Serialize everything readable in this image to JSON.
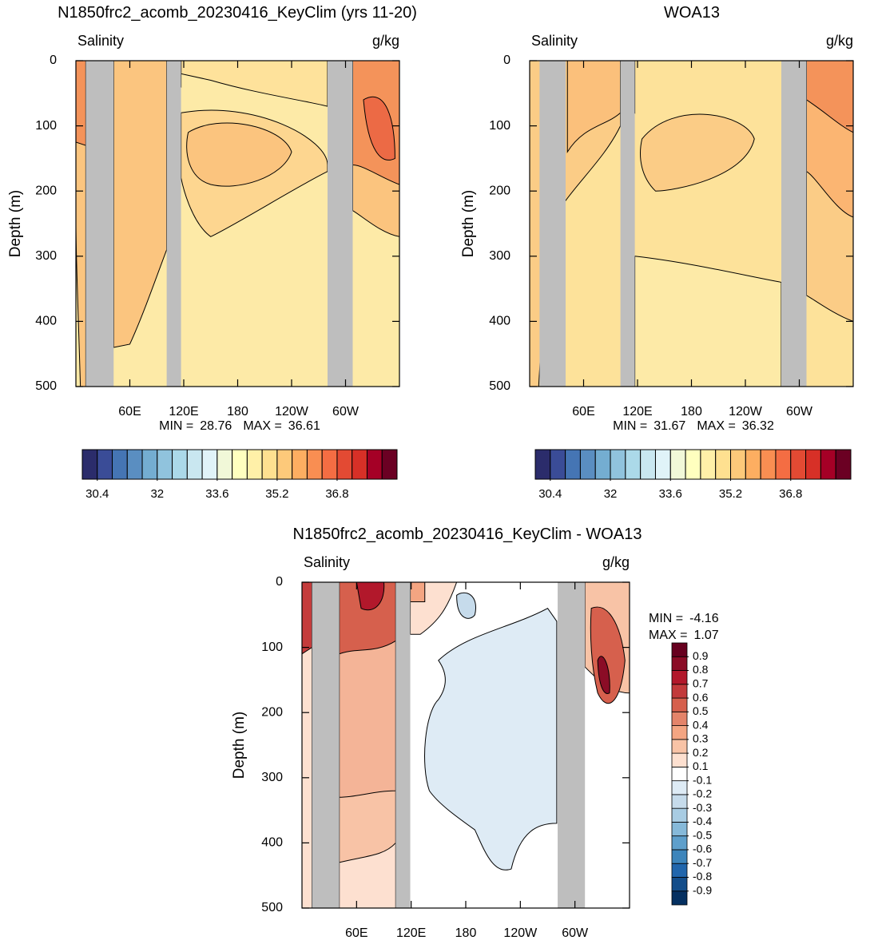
{
  "chart_data": [
    {
      "type": "contour",
      "title": "N1850frc2_acomb_20230416_KeyClim (yrs 11-20)",
      "left_label": "Salinity",
      "right_label": "g/kg",
      "ylabel": "Depth (m)",
      "xlim": [
        0,
        360
      ],
      "xticks": [
        {
          "value": 60,
          "label": "60E"
        },
        {
          "value": 120,
          "label": "120E"
        },
        180,
        {
          "value": 240,
          "label": "120W"
        },
        {
          "value": 300,
          "label": "60W"
        }
      ],
      "ylim": [
        0,
        500
      ],
      "yticks": [
        0,
        100,
        200,
        300,
        400,
        500
      ],
      "y_inverted": true,
      "min_label": "MIN =",
      "min": 28.76,
      "max_label": "MAX =",
      "max": 36.61,
      "colorbar": {
        "orientation": "horizontal",
        "lim": [
          30.0,
          38.4
        ],
        "ticks": [
          30.4,
          32,
          33.6,
          35.2,
          36.8
        ],
        "colors": [
          "#2b2c6b",
          "#3a4c97",
          "#4575b4",
          "#5a8ec1",
          "#74add1",
          "#90c3dd",
          "#abd9e9",
          "#c9e7f0",
          "#e0f3f8",
          "#f1f8d8",
          "#ffffbf",
          "#fff0a8",
          "#fee090",
          "#fdc97a",
          "#fdae61",
          "#f98e52",
          "#f46d43",
          "#e34a33",
          "#d73027",
          "#a50026",
          "#6b0023"
        ]
      }
    },
    {
      "type": "contour",
      "title": "WOA13",
      "left_label": "Salinity",
      "right_label": "g/kg",
      "ylabel": "Depth (m)",
      "xlim": [
        0,
        360
      ],
      "xticks": [
        {
          "value": 60,
          "label": "60E"
        },
        {
          "value": 120,
          "label": "120E"
        },
        180,
        {
          "value": 240,
          "label": "120W"
        },
        {
          "value": 300,
          "label": "60W"
        }
      ],
      "ylim": [
        0,
        500
      ],
      "yticks": [
        0,
        100,
        200,
        300,
        400,
        500
      ],
      "y_inverted": true,
      "min_label": "MIN =",
      "min": 31.67,
      "max_label": "MAX =",
      "max": 36.32,
      "colorbar": {
        "orientation": "horizontal",
        "lim": [
          30.0,
          38.4
        ],
        "ticks": [
          30.4,
          32,
          33.6,
          35.2,
          36.8
        ],
        "colors": [
          "#2b2c6b",
          "#3a4c97",
          "#4575b4",
          "#5a8ec1",
          "#74add1",
          "#90c3dd",
          "#abd9e9",
          "#c9e7f0",
          "#e0f3f8",
          "#f1f8d8",
          "#ffffbf",
          "#fff0a8",
          "#fee090",
          "#fdc97a",
          "#fdae61",
          "#f98e52",
          "#f46d43",
          "#e34a33",
          "#d73027",
          "#a50026",
          "#6b0023"
        ]
      }
    },
    {
      "type": "contour",
      "title": "N1850frc2_acomb_20230416_KeyClim - WOA13",
      "left_label": "Salinity",
      "right_label": "g/kg",
      "ylabel": "Depth (m)",
      "xlim": [
        0,
        360
      ],
      "xticks": [
        {
          "value": 60,
          "label": "60E"
        },
        {
          "value": 120,
          "label": "120E"
        },
        180,
        {
          "value": 240,
          "label": "120W"
        },
        {
          "value": 300,
          "label": "60W"
        }
      ],
      "ylim": [
        0,
        500
      ],
      "yticks": [
        0,
        100,
        200,
        300,
        400,
        500
      ],
      "y_inverted": true,
      "min_label": "MIN =",
      "min": -4.16,
      "max_label": "MAX =",
      "max": 1.07,
      "colorbar": {
        "orientation": "vertical",
        "labels": [
          -0.9,
          -0.8,
          -0.7,
          -0.6,
          -0.5,
          -0.4,
          -0.3,
          -0.2,
          -0.1,
          0.1,
          0.2,
          0.3,
          0.4,
          0.5,
          0.6,
          0.7,
          0.8,
          0.9
        ],
        "colors": [
          "#053061",
          "#134d8a",
          "#2166ac",
          "#3d85bb",
          "#5e9fcb",
          "#86b9d9",
          "#a8cce3",
          "#c6dbeb",
          "#deebf5",
          "#ffffff",
          "#fde0d0",
          "#f8c3a6",
          "#f4a582",
          "#e4846a",
          "#d6604d",
          "#c23a3b",
          "#b2182b",
          "#8b0c26",
          "#67001f"
        ]
      }
    }
  ]
}
